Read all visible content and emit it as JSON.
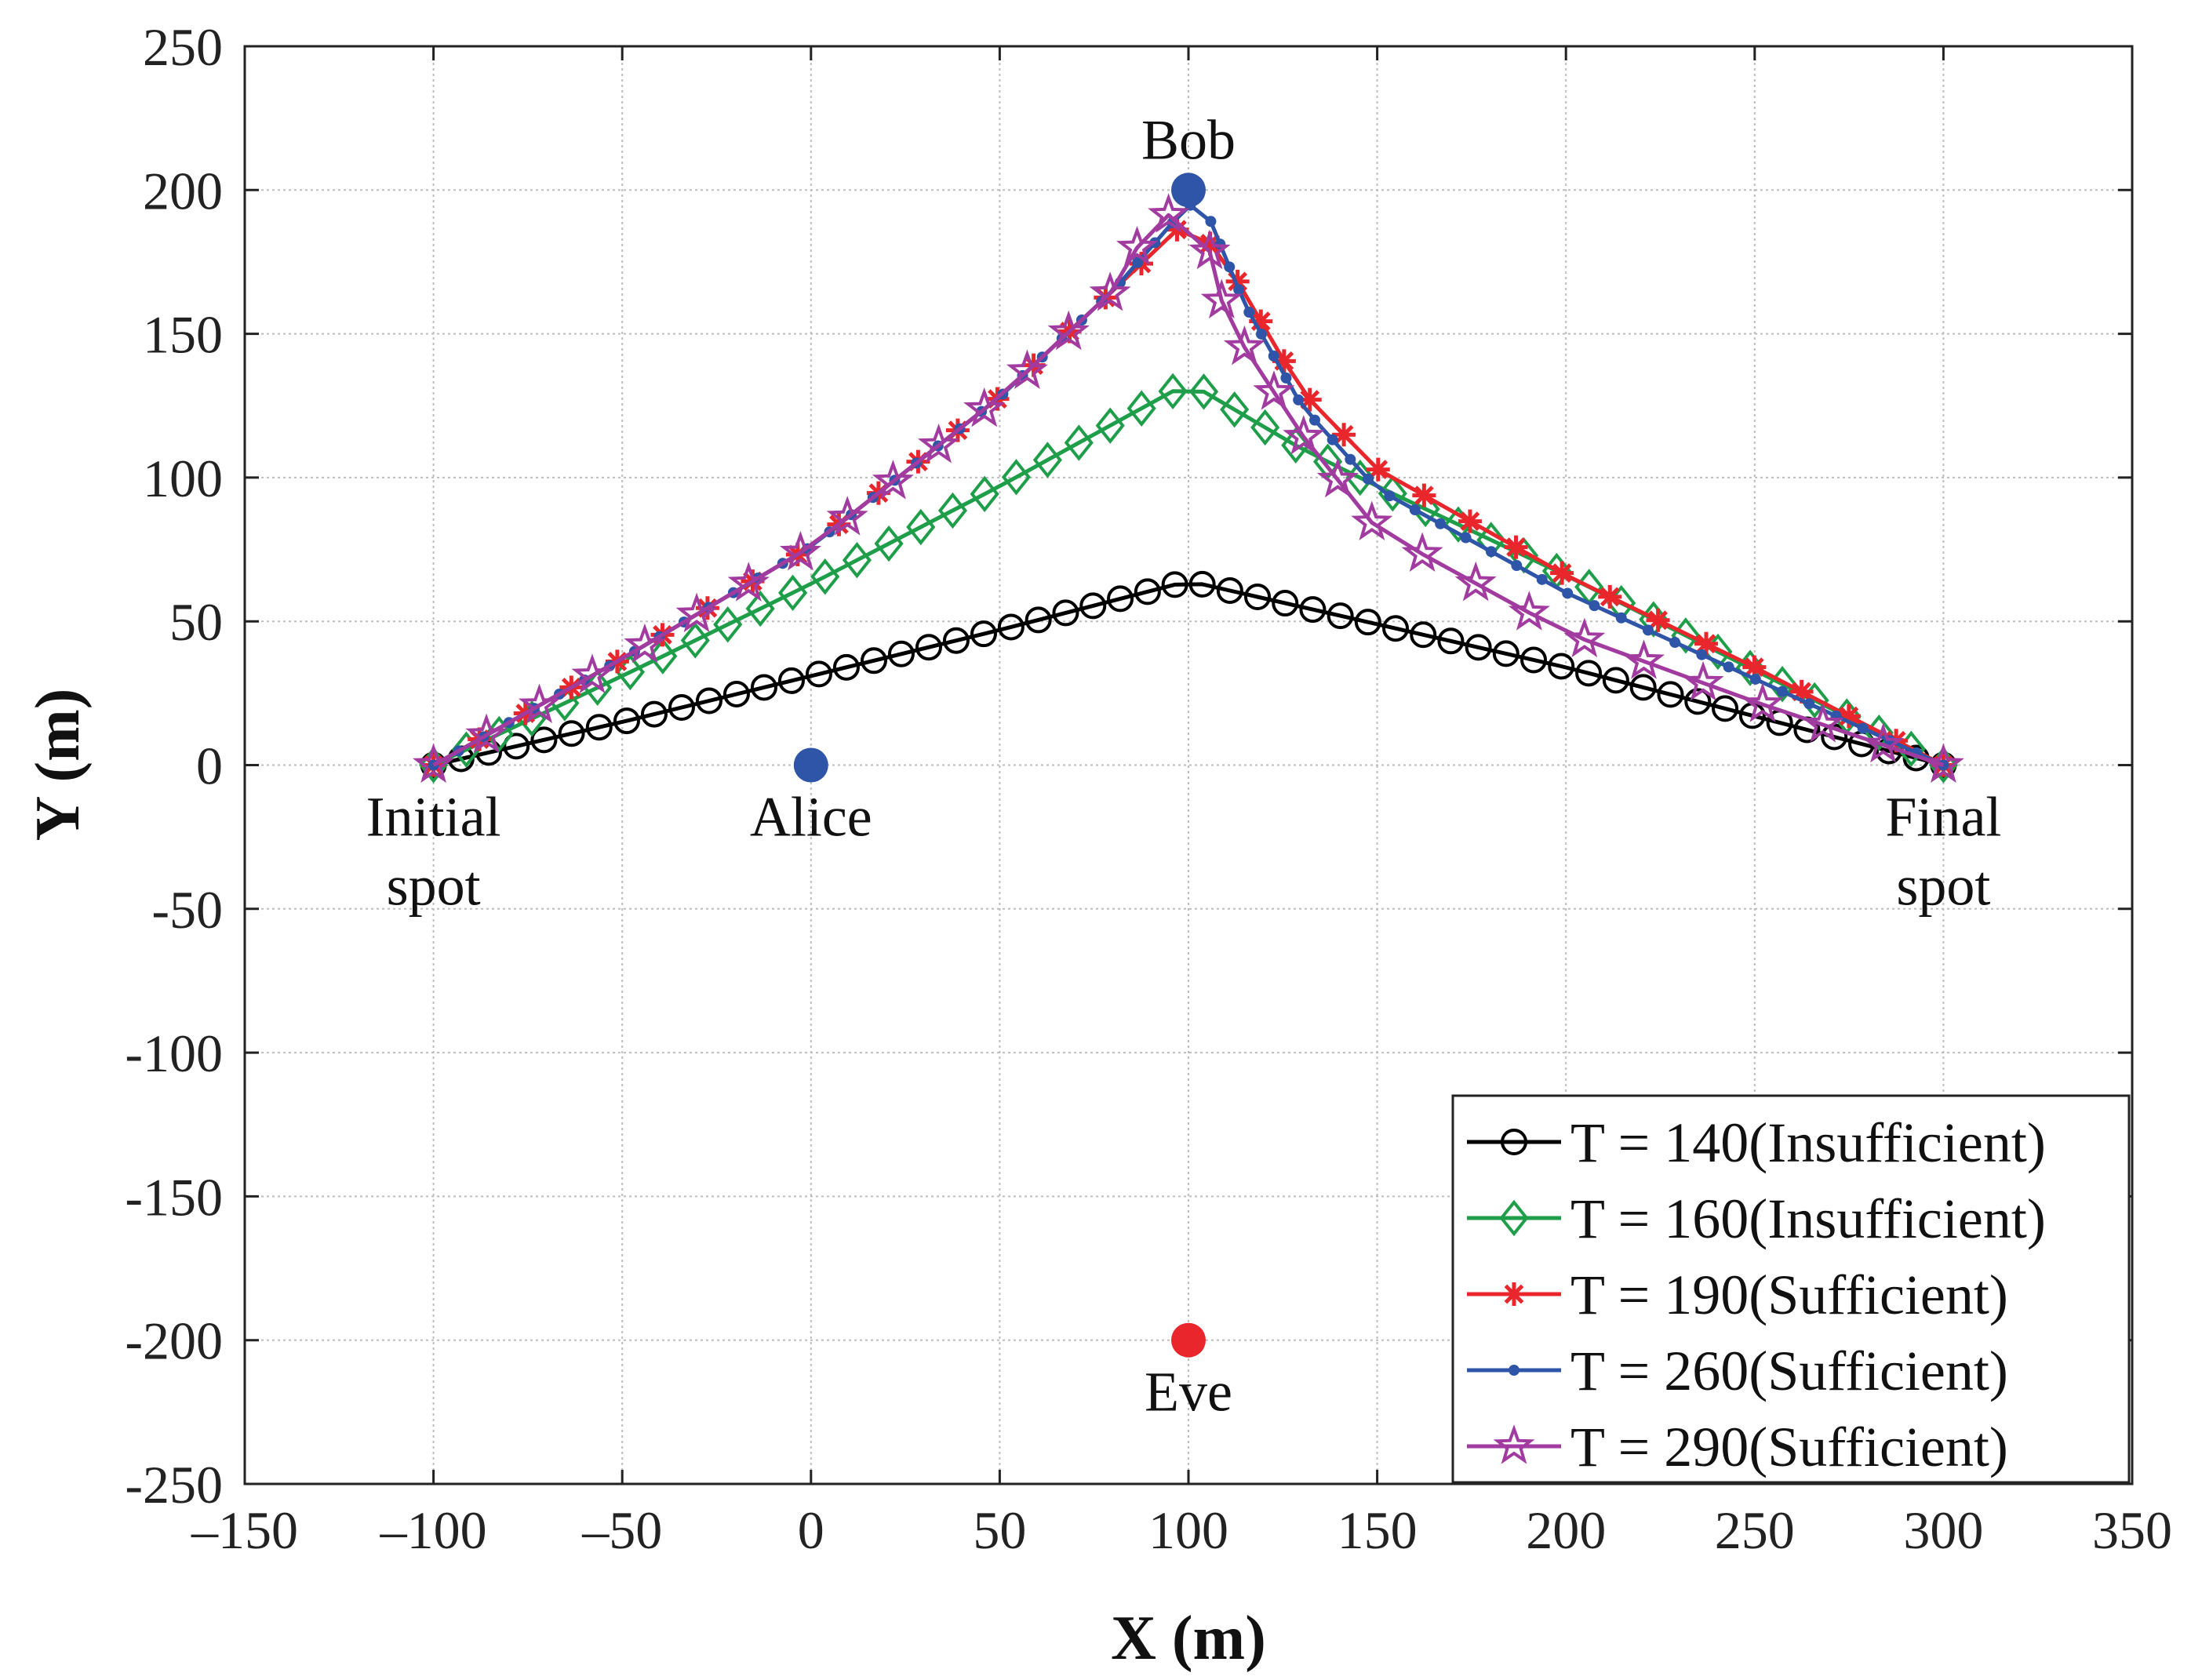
{
  "chart_data": {
    "type": "line",
    "title": "",
    "xlabel": "X (m)",
    "ylabel": "Y (m)",
    "xlim": [
      -150,
      350
    ],
    "ylim": [
      -250,
      250
    ],
    "xticks": [
      -150,
      -100,
      -50,
      0,
      50,
      100,
      150,
      200,
      250,
      300,
      350
    ],
    "yticks": [
      -250,
      -200,
      -150,
      -100,
      -50,
      0,
      50,
      100,
      150,
      200,
      250
    ],
    "grid": true,
    "legend_position": "bottom-right",
    "series": [
      {
        "name": "T = 140(Insufficient)",
        "color": "#000000",
        "marker": "circle",
        "anchors": [
          [
            -100,
            0
          ],
          [
            -50,
            15
          ],
          [
            0,
            31
          ],
          [
            50,
            47
          ],
          [
            100,
            64
          ],
          [
            150,
            49
          ],
          [
            200,
            34
          ],
          [
            250,
            17
          ],
          [
            300,
            0
          ]
        ],
        "points": 56
      },
      {
        "name": "T = 160(Insufficient)",
        "color": "#1f9e4a",
        "marker": "diamond",
        "anchors": [
          [
            -100,
            0
          ],
          [
            -50,
            31
          ],
          [
            0,
            63
          ],
          [
            50,
            97
          ],
          [
            100,
            133
          ],
          [
            130,
            110
          ],
          [
            150,
            97
          ],
          [
            200,
            66
          ],
          [
            250,
            33
          ],
          [
            300,
            0
          ]
        ],
        "points": 48
      },
      {
        "name": "T = 190(Sufficient)",
        "color": "#e8262b",
        "marker": "asterisk",
        "anchors": [
          [
            -100,
            0
          ],
          [
            -50,
            37
          ],
          [
            0,
            76
          ],
          [
            50,
            128
          ],
          [
            80,
            165
          ],
          [
            100,
            190
          ],
          [
            110,
            175
          ],
          [
            130,
            130
          ],
          [
            150,
            103
          ],
          [
            200,
            66
          ],
          [
            250,
            34
          ],
          [
            300,
            0
          ]
        ],
        "points": 38
      },
      {
        "name": "T = 260(Sufficient)",
        "color": "#2f55a8",
        "marker": "dot",
        "anchors": [
          [
            -100,
            0
          ],
          [
            -50,
            37
          ],
          [
            0,
            76
          ],
          [
            50,
            128
          ],
          [
            80,
            165
          ],
          [
            100,
            195
          ],
          [
            105,
            192
          ],
          [
            115,
            160
          ],
          [
            130,
            125
          ],
          [
            150,
            96
          ],
          [
            200,
            60
          ],
          [
            250,
            30
          ],
          [
            300,
            0
          ]
        ],
        "points": 70
      },
      {
        "name": "T = 290(Sufficient)",
        "color": "#a23ba0",
        "marker": "star",
        "anchors": [
          [
            -100,
            0
          ],
          [
            -50,
            37
          ],
          [
            0,
            76
          ],
          [
            50,
            128
          ],
          [
            80,
            165
          ],
          [
            92,
            193
          ],
          [
            100,
            188
          ],
          [
            105,
            182
          ],
          [
            110,
            155
          ],
          [
            130,
            115
          ],
          [
            150,
            82
          ],
          [
            200,
            46
          ],
          [
            250,
            22
          ],
          [
            300,
            0
          ]
        ],
        "points": 34
      }
    ],
    "points_of_interest": [
      {
        "label": "Bob",
        "x": 100,
        "y": 200,
        "color": "#2f55a8",
        "label_side": "above"
      },
      {
        "label": "Alice",
        "x": 0,
        "y": 0,
        "color": "#2f55a8",
        "label_side": "below"
      },
      {
        "label": "Eve",
        "x": 100,
        "y": -200,
        "color": "#e8262b",
        "label_side": "below"
      }
    ],
    "annotations": [
      {
        "lines": [
          "Initial",
          "spot"
        ],
        "x": -100,
        "y": 0
      },
      {
        "lines": [
          "Final",
          "spot"
        ],
        "x": 300,
        "y": 0
      }
    ]
  }
}
